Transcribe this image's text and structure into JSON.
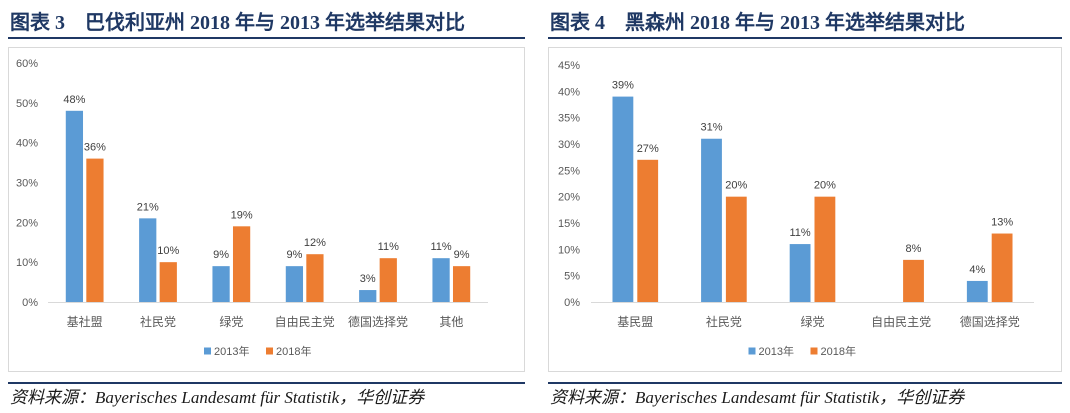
{
  "chart_data": [
    {
      "type": "bar",
      "figure_label": "图表 3",
      "title": "巴伐利亚州 2018 年与 2013 年选举结果对比",
      "categories": [
        "基社盟",
        "社民党",
        "绿党",
        "自由民主党",
        "德国选择党",
        "其他"
      ],
      "series": [
        {
          "name": "2013年",
          "color": "#5B9BD5",
          "values": [
            48,
            21,
            9,
            9,
            3,
            11
          ]
        },
        {
          "name": "2018年",
          "color": "#ED7D31",
          "values": [
            36,
            10,
            19,
            12,
            11,
            9
          ]
        }
      ],
      "unit": "%",
      "ylim": [
        0,
        60
      ],
      "yticks": [
        0,
        10,
        20,
        30,
        40,
        50,
        60
      ],
      "grid": false,
      "legend": "bottom",
      "source": "资料来源：Bayerisches Landesamt für Statistik，华创证券"
    },
    {
      "type": "bar",
      "figure_label": "图表 4",
      "title": "黑森州 2018 年与 2013 年选举结果对比",
      "categories": [
        "基民盟",
        "社民党",
        "绿党",
        "自由民主党",
        "德国选择党"
      ],
      "series": [
        {
          "name": "2013年",
          "color": "#5B9BD5",
          "values": [
            39,
            31,
            11,
            null,
            4
          ]
        },
        {
          "name": "2018年",
          "color": "#ED7D31",
          "values": [
            27,
            20,
            20,
            8,
            13
          ]
        }
      ],
      "unit": "%",
      "ylim": [
        0,
        45
      ],
      "yticks": [
        0,
        5,
        10,
        15,
        20,
        25,
        30,
        35,
        40,
        45
      ],
      "grid": false,
      "legend": "bottom",
      "source": "资料来源：Bayerisches Landesamt für Statistik，华创证券"
    }
  ]
}
